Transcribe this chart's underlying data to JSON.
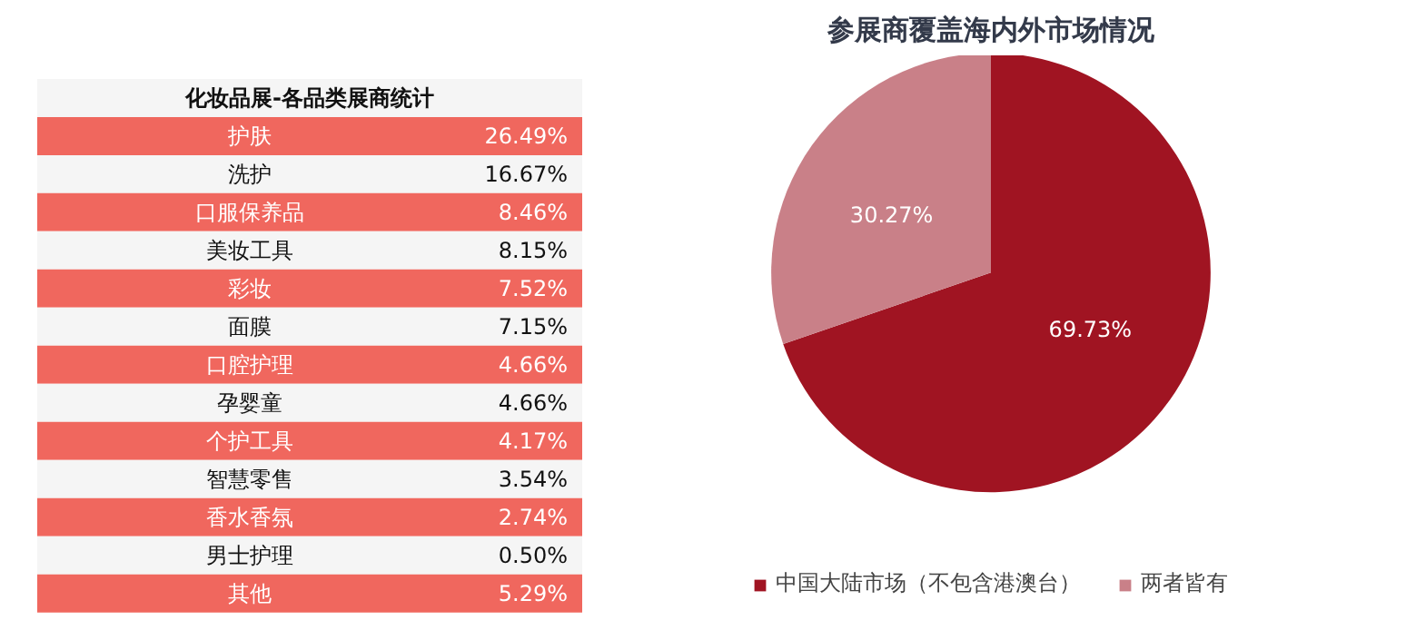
{
  "chart_data": [
    {
      "type": "other",
      "title": "化妆品展-各品类展商统计",
      "categories": [
        "护肤",
        "洗护",
        "口服保养品",
        "美妆工具",
        "彩妆",
        "面膜",
        "口腔护理",
        "孕婴童",
        "个护工具",
        "智慧零售",
        "香水香氛",
        "男士护理",
        "其他"
      ],
      "values": [
        26.49,
        16.67,
        8.46,
        8.15,
        7.52,
        7.15,
        4.66,
        4.66,
        4.17,
        3.54,
        2.74,
        0.5,
        5.29
      ],
      "value_labels": [
        "26.49%",
        "16.67%",
        "8.46%",
        "8.15%",
        "7.52%",
        "7.15%",
        "4.66%",
        "4.66%",
        "4.17%",
        "3.54%",
        "2.74%",
        "0.50%",
        "5.29%"
      ],
      "colors": [
        "#f0675e",
        "#f5f5f5",
        "#f0675e",
        "#f5f5f5",
        "#f0675e",
        "#f5f5f5",
        "#f0675e",
        "#f5f5f5",
        "#f0675e",
        "#f5f5f5",
        "#f0675e",
        "#f5f5f5",
        "#f0675e"
      ]
    },
    {
      "type": "pie",
      "title": "参展商覆盖海内外市场情况",
      "categories": [
        "中国大陆市场（不包含港澳台）",
        "两者皆有"
      ],
      "values": [
        69.73,
        30.27
      ],
      "value_labels": [
        "69.73%",
        "30.27%"
      ],
      "colors": [
        "#a01422",
        "#c98088"
      ],
      "legend": "bottom"
    }
  ]
}
